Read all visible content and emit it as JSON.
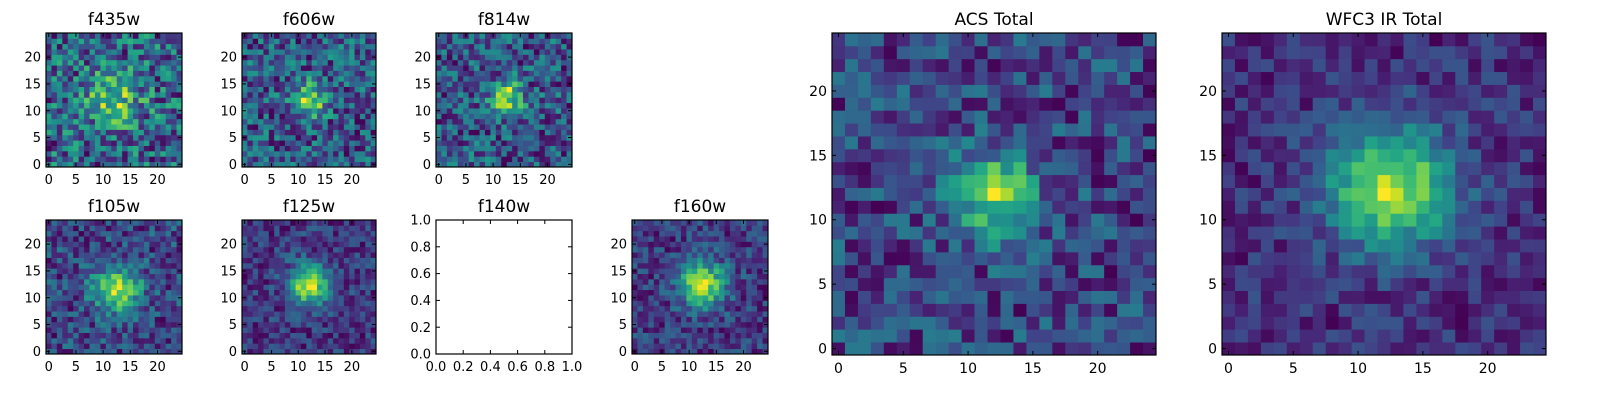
{
  "chart_data": [
    {
      "type": "heatmap",
      "title": "f435w",
      "xticks": [
        "0",
        "5",
        "10",
        "15",
        "20"
      ],
      "yticks": [
        "0",
        "5",
        "10",
        "15",
        "20"
      ],
      "xlim": [
        -0.5,
        24.5
      ],
      "ylim": [
        -0.5,
        24.5
      ],
      "grid_size": 25,
      "center": [
        12,
        12
      ],
      "peak": 0.55,
      "noise": 0.85,
      "sigma": 3.5,
      "empty": false
    },
    {
      "type": "heatmap",
      "title": "f606w",
      "xticks": [
        "0",
        "5",
        "10",
        "15",
        "20"
      ],
      "yticks": [
        "0",
        "5",
        "10",
        "15",
        "20"
      ],
      "xlim": [
        -0.5,
        24.5
      ],
      "ylim": [
        -0.5,
        24.5
      ],
      "grid_size": 25,
      "center": [
        12,
        12
      ],
      "peak": 0.75,
      "noise": 0.75,
      "sigma": 2.2,
      "empty": false
    },
    {
      "type": "heatmap",
      "title": "f814w",
      "xticks": [
        "0",
        "5",
        "10",
        "15",
        "20"
      ],
      "yticks": [
        "0",
        "5",
        "10",
        "15",
        "20"
      ],
      "xlim": [
        -0.5,
        24.5
      ],
      "ylim": [
        -0.5,
        24.5
      ],
      "grid_size": 25,
      "center": [
        12.5,
        12.5
      ],
      "peak": 0.85,
      "noise": 0.75,
      "sigma": 2.0,
      "empty": false
    },
    {
      "type": "heatmap",
      "title": "f105w",
      "xticks": [
        "0",
        "5",
        "10",
        "15",
        "20"
      ],
      "yticks": [
        "0",
        "5",
        "10",
        "15",
        "20"
      ],
      "xlim": [
        -0.5,
        24.5
      ],
      "ylim": [
        -0.5,
        24.5
      ],
      "grid_size": 25,
      "center": [
        12.5,
        11.5
      ],
      "peak": 0.8,
      "noise": 0.6,
      "sigma": 3.2,
      "empty": false
    },
    {
      "type": "heatmap",
      "title": "f125w",
      "xticks": [
        "0",
        "5",
        "10",
        "15",
        "20"
      ],
      "yticks": [
        "0",
        "5",
        "10",
        "15",
        "20"
      ],
      "xlim": [
        -0.5,
        24.5
      ],
      "ylim": [
        -0.5,
        24.5
      ],
      "grid_size": 25,
      "center": [
        12,
        12.5
      ],
      "peak": 1.0,
      "noise": 0.45,
      "sigma": 2.6,
      "empty": false
    },
    {
      "type": "line",
      "title": "f140w",
      "xticks": [
        "0.0",
        "0.2",
        "0.4",
        "0.6",
        "0.8",
        "1.0"
      ],
      "yticks": [
        "0.0",
        "0.2",
        "0.4",
        "0.6",
        "0.8",
        "1.0"
      ],
      "xlim": [
        0,
        1
      ],
      "ylim": [
        0,
        1
      ],
      "empty": true
    },
    {
      "type": "heatmap",
      "title": "f160w",
      "xticks": [
        "0",
        "5",
        "10",
        "15",
        "20"
      ],
      "yticks": [
        "0",
        "5",
        "10",
        "15",
        "20"
      ],
      "xlim": [
        -0.5,
        24.5
      ],
      "ylim": [
        -0.5,
        24.5
      ],
      "grid_size": 25,
      "center": [
        12.5,
        12.5
      ],
      "peak": 1.0,
      "noise": 0.5,
      "sigma": 3.0,
      "empty": false
    },
    {
      "type": "heatmap",
      "title": "ACS Total",
      "xticks": [
        "0",
        "5",
        "10",
        "15",
        "20"
      ],
      "yticks": [
        "0",
        "5",
        "10",
        "15",
        "20"
      ],
      "xlim": [
        -0.5,
        24.5
      ],
      "ylim": [
        -0.5,
        24.5
      ],
      "grid_size": 25,
      "center": [
        12,
        12
      ],
      "peak": 0.9,
      "noise": 0.6,
      "sigma": 2.3,
      "empty": false
    },
    {
      "type": "heatmap",
      "title": "WFC3 IR Total",
      "xticks": [
        "0",
        "5",
        "10",
        "15",
        "20"
      ],
      "yticks": [
        "0",
        "5",
        "10",
        "15",
        "20"
      ],
      "xlim": [
        -0.5,
        24.5
      ],
      "ylim": [
        -0.5,
        24.5
      ],
      "grid_size": 25,
      "center": [
        12.5,
        12.5
      ],
      "peak": 1.0,
      "noise": 0.35,
      "sigma": 3.4,
      "empty": false
    }
  ],
  "colormap": "viridis",
  "colors": {
    "axes": "#000000",
    "background": "#ffffff"
  }
}
